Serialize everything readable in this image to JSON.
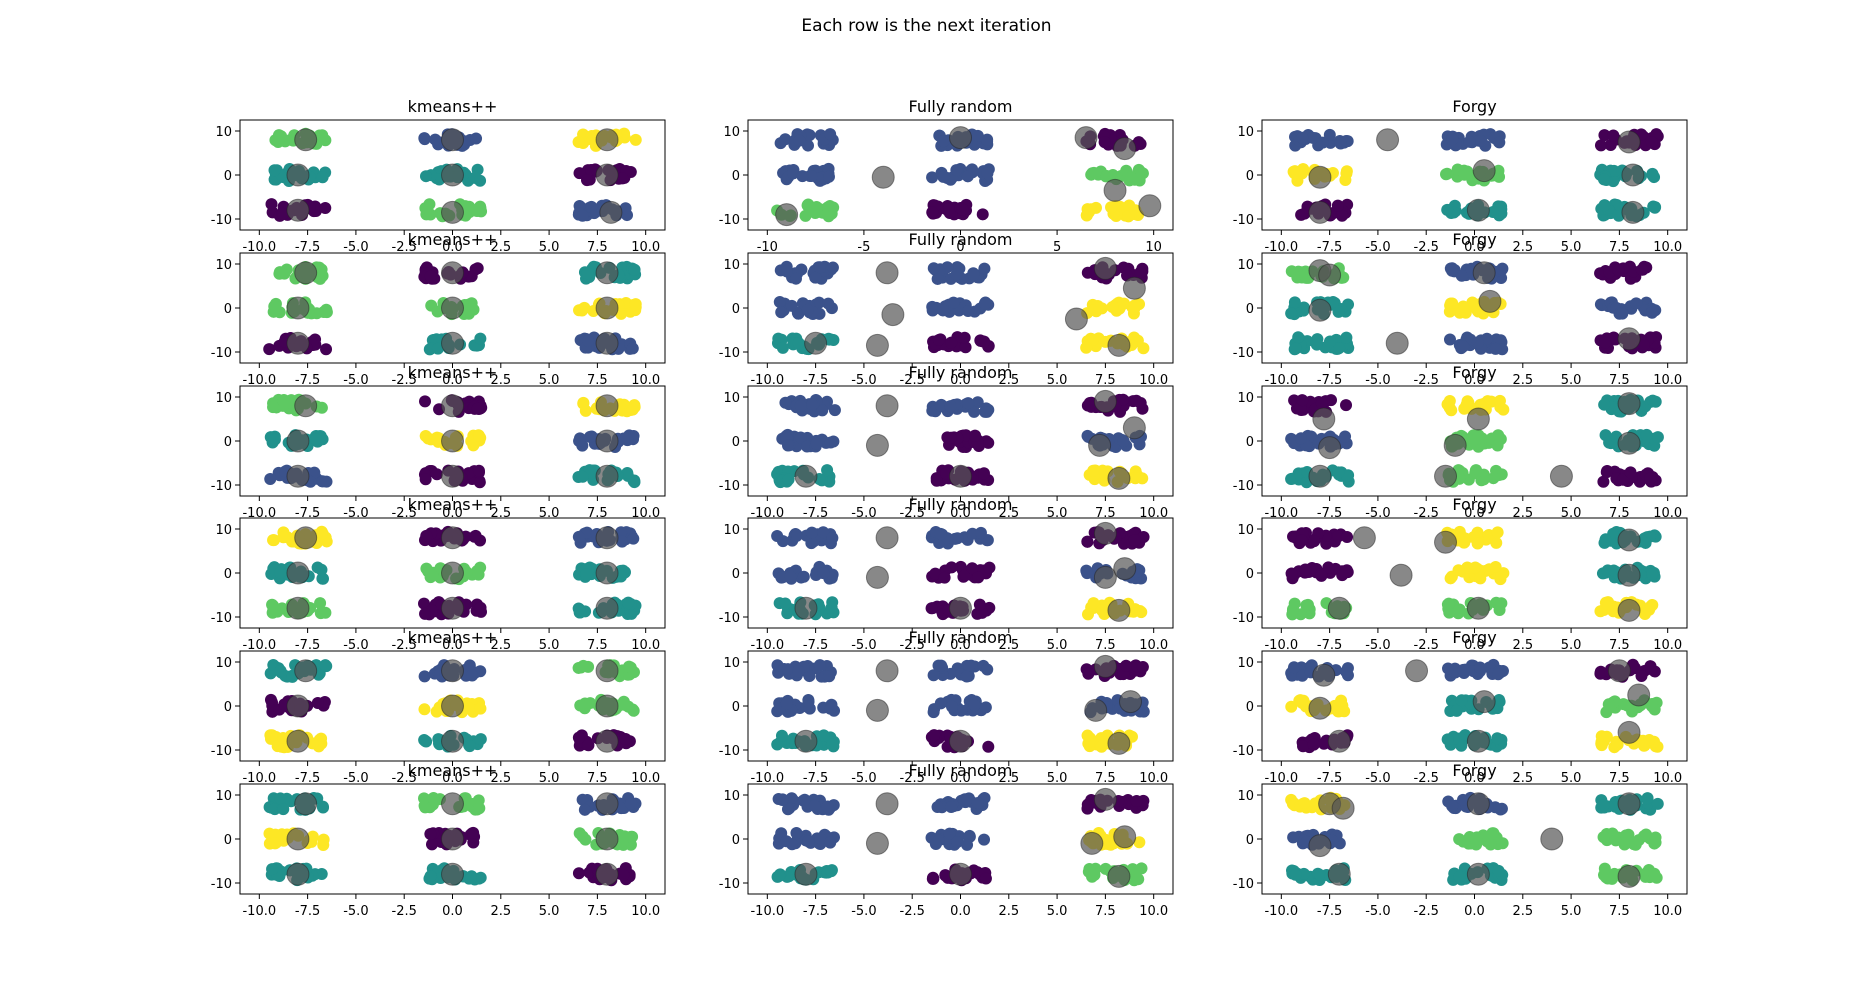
{
  "figure": {
    "title": "Each row is the next iteration"
  },
  "colors": {
    "viridis": [
      "#440154",
      "#3b528b",
      "#21918c",
      "#5ec962",
      "#fde725"
    ],
    "center": "#555555"
  },
  "chart_data": {
    "type": "scatter",
    "layout": "grid",
    "columns": [
      "kmeans++",
      "Fully random",
      "Forgy"
    ],
    "rows": 6,
    "xticks_default": [
      "-10.0",
      "-7.5",
      "-5.0",
      "-2.5",
      "0.0",
      "2.5",
      "5.0",
      "7.5",
      "10.0"
    ],
    "xticks_fully_random_row0": [
      "-10",
      "-5",
      "0",
      "5",
      "10"
    ],
    "yticks": [
      "10",
      "0",
      "-10"
    ],
    "xlim": [
      -11,
      11
    ],
    "ylim": [
      -12.5,
      12.5
    ],
    "points_description": "9 blobs of points centred near x ∈ {-8, 0, 8}, y ∈ {8, 0, -8}, coloured by assigned cluster (viridis); large grey translucent circles mark cluster centres",
    "blob_centers": [
      [
        -8,
        8
      ],
      [
        0,
        8
      ],
      [
        8,
        8
      ],
      [
        -8,
        0
      ],
      [
        0,
        0
      ],
      [
        8,
        0
      ],
      [
        -8,
        -8
      ],
      [
        0,
        -8
      ],
      [
        8,
        -8
      ]
    ],
    "panels": [
      [
        {
          "title": "kmeans++",
          "blob_colors": [
            3,
            1,
            4,
            2,
            2,
            0,
            0,
            3,
            1
          ],
          "centers": [
            [
              -7.6,
              8
            ],
            [
              0,
              8
            ],
            [
              8,
              8
            ],
            [
              -8,
              0
            ],
            [
              0,
              0
            ],
            [
              8,
              0
            ],
            [
              -8,
              -8
            ],
            [
              0,
              -8.5
            ],
            [
              8.2,
              -8.5
            ]
          ]
        },
        {
          "title": "Fully random",
          "blob_colors": [
            1,
            1,
            0,
            1,
            1,
            3,
            3,
            0,
            4
          ],
          "centers": [
            [
              -9,
              -9
            ],
            [
              -4,
              -0.5
            ],
            [
              0,
              8.5
            ],
            [
              6.5,
              8.5
            ],
            [
              8.5,
              6
            ],
            [
              8,
              -3.5
            ],
            [
              9.8,
              -7
            ]
          ]
        },
        {
          "title": "Forgy",
          "blob_colors": [
            1,
            1,
            0,
            4,
            3,
            2,
            0,
            2,
            2
          ],
          "centers": [
            [
              -4.5,
              8
            ],
            [
              0.5,
              1
            ],
            [
              8,
              7.5
            ],
            [
              -8,
              -0.5
            ],
            [
              8.2,
              0
            ],
            [
              -8,
              -8.5
            ],
            [
              0.2,
              -8
            ],
            [
              8.2,
              -8.5
            ]
          ]
        }
      ],
      [
        {
          "title": "kmeans++",
          "blob_colors": [
            3,
            0,
            2,
            3,
            3,
            4,
            0,
            2,
            1
          ],
          "centers": [
            [
              -7.6,
              8
            ],
            [
              0,
              8
            ],
            [
              8,
              8
            ],
            [
              -8,
              0
            ],
            [
              0,
              0
            ],
            [
              8,
              0
            ],
            [
              -8,
              -8
            ],
            [
              0,
              -8
            ],
            [
              8,
              -8
            ]
          ]
        },
        {
          "title": "Fully random",
          "blob_colors": [
            1,
            1,
            0,
            1,
            1,
            4,
            2,
            0,
            4
          ],
          "centers": [
            [
              -3.8,
              8
            ],
            [
              -3.5,
              -1.5
            ],
            [
              -4.3,
              -8.5
            ],
            [
              7.5,
              9
            ],
            [
              9,
              4.5
            ],
            [
              6,
              -2.5
            ],
            [
              8.2,
              -8.5
            ],
            [
              -7.5,
              -8
            ]
          ]
        },
        {
          "title": "Forgy",
          "blob_colors": [
            3,
            1,
            0,
            2,
            4,
            1,
            2,
            1,
            0
          ],
          "centers": [
            [
              -8,
              8.5
            ],
            [
              -7.5,
              7.5
            ],
            [
              0.5,
              8
            ],
            [
              0.8,
              1.5
            ],
            [
              -8,
              -0.5
            ],
            [
              -4,
              -8
            ],
            [
              8,
              -7
            ]
          ]
        }
      ],
      [
        {
          "title": "kmeans++",
          "blob_colors": [
            3,
            0,
            4,
            2,
            4,
            1,
            1,
            0,
            2
          ],
          "centers": [
            [
              -7.6,
              8
            ],
            [
              0,
              8
            ],
            [
              8,
              8
            ],
            [
              -8,
              0
            ],
            [
              0,
              0
            ],
            [
              8,
              0
            ],
            [
              -8,
              -8
            ],
            [
              0,
              -8
            ],
            [
              8,
              -8
            ]
          ]
        },
        {
          "title": "Fully random",
          "blob_colors": [
            1,
            1,
            0,
            1,
            0,
            1,
            2,
            0,
            4
          ],
          "centers": [
            [
              -3.8,
              8
            ],
            [
              -4.3,
              -1
            ],
            [
              7.5,
              9
            ],
            [
              9,
              3
            ],
            [
              7.2,
              -1
            ],
            [
              -8,
              -8
            ],
            [
              0,
              -8
            ],
            [
              8.2,
              -8.5
            ]
          ]
        },
        {
          "title": "Forgy",
          "blob_colors": [
            0,
            4,
            2,
            1,
            3,
            2,
            2,
            3,
            0
          ],
          "centers": [
            [
              -7.8,
              5
            ],
            [
              0.2,
              5
            ],
            [
              -7.5,
              -1.5
            ],
            [
              -1,
              -1
            ],
            [
              8,
              8.5
            ],
            [
              8,
              -0.5
            ],
            [
              -8,
              -8
            ],
            [
              -1.5,
              -8
            ],
            [
              4.5,
              -8
            ]
          ]
        }
      ],
      [
        {
          "title": "kmeans++",
          "blob_colors": [
            4,
            0,
            1,
            2,
            3,
            2,
            3,
            0,
            2
          ],
          "centers": [
            [
              -7.6,
              8
            ],
            [
              0,
              8
            ],
            [
              8,
              8
            ],
            [
              -8,
              0
            ],
            [
              0,
              0
            ],
            [
              8,
              0
            ],
            [
              -8,
              -8
            ],
            [
              0,
              -8
            ],
            [
              8,
              -8
            ]
          ]
        },
        {
          "title": "Fully random",
          "blob_colors": [
            1,
            1,
            0,
            1,
            0,
            1,
            2,
            0,
            4
          ],
          "centers": [
            [
              -3.8,
              8
            ],
            [
              -4.3,
              -1
            ],
            [
              7.5,
              9
            ],
            [
              7.5,
              -1
            ],
            [
              8.5,
              1
            ],
            [
              -8,
              -8
            ],
            [
              0,
              -8
            ],
            [
              8.2,
              -8.5
            ]
          ]
        },
        {
          "title": "Forgy",
          "blob_colors": [
            0,
            4,
            2,
            0,
            4,
            2,
            3,
            3,
            4
          ],
          "centers": [
            [
              -5.7,
              8
            ],
            [
              -1.5,
              7
            ],
            [
              8,
              7.5
            ],
            [
              -3.8,
              -0.5
            ],
            [
              8,
              -0.5
            ],
            [
              -7,
              -8
            ],
            [
              0.2,
              -8
            ],
            [
              8,
              -8.5
            ]
          ]
        }
      ],
      [
        {
          "title": "kmeans++",
          "blob_colors": [
            2,
            1,
            3,
            0,
            4,
            3,
            4,
            2,
            0
          ],
          "centers": [
            [
              -7.6,
              8
            ],
            [
              0,
              8
            ],
            [
              8,
              8
            ],
            [
              -8,
              0
            ],
            [
              0,
              0
            ],
            [
              8,
              0
            ],
            [
              -8,
              -8
            ],
            [
              0,
              -8
            ],
            [
              8,
              -8
            ]
          ]
        },
        {
          "title": "Fully random",
          "blob_colors": [
            1,
            1,
            0,
            1,
            1,
            1,
            2,
            0,
            4
          ],
          "centers": [
            [
              -3.8,
              8
            ],
            [
              -4.3,
              -1
            ],
            [
              7.5,
              9
            ],
            [
              7,
              -1
            ],
            [
              8.8,
              1
            ],
            [
              -8,
              -8
            ],
            [
              0,
              -8
            ],
            [
              8.2,
              -8.5
            ]
          ]
        },
        {
          "title": "Forgy",
          "blob_colors": [
            1,
            1,
            0,
            4,
            2,
            3,
            0,
            2,
            4
          ],
          "centers": [
            [
              -3,
              8
            ],
            [
              -7.8,
              7
            ],
            [
              7.5,
              8
            ],
            [
              8.5,
              2.5
            ],
            [
              0.5,
              1
            ],
            [
              -8,
              -0.5
            ],
            [
              -7,
              -8
            ],
            [
              0.2,
              -8
            ],
            [
              8,
              -6
            ]
          ]
        }
      ],
      [
        {
          "title": "kmeans++",
          "blob_colors": [
            2,
            3,
            1,
            4,
            0,
            3,
            2,
            2,
            0
          ],
          "centers": [
            [
              -7.6,
              8
            ],
            [
              0,
              8
            ],
            [
              8,
              8
            ],
            [
              -8,
              0
            ],
            [
              0,
              0
            ],
            [
              8,
              0
            ],
            [
              -8,
              -8
            ],
            [
              0,
              -8
            ],
            [
              8,
              -8
            ]
          ]
        },
        {
          "title": "Fully random",
          "blob_colors": [
            1,
            1,
            0,
            1,
            1,
            4,
            2,
            0,
            3
          ],
          "centers": [
            [
              -3.8,
              8
            ],
            [
              -4.3,
              -1
            ],
            [
              7.5,
              9
            ],
            [
              6.8,
              -1
            ],
            [
              8.5,
              0.5
            ],
            [
              -8,
              -8
            ],
            [
              0,
              -8
            ],
            [
              8.2,
              -8.5
            ]
          ]
        },
        {
          "title": "Forgy",
          "blob_colors": [
            4,
            1,
            2,
            1,
            3,
            3,
            2,
            2,
            3
          ],
          "centers": [
            [
              -7.5,
              8
            ],
            [
              -6.8,
              7
            ],
            [
              0.2,
              8
            ],
            [
              8,
              8
            ],
            [
              -8,
              -1.5
            ],
            [
              4,
              0
            ],
            [
              -7,
              -8
            ],
            [
              0.2,
              -8
            ],
            [
              8,
              -8.5
            ]
          ]
        }
      ]
    ]
  }
}
